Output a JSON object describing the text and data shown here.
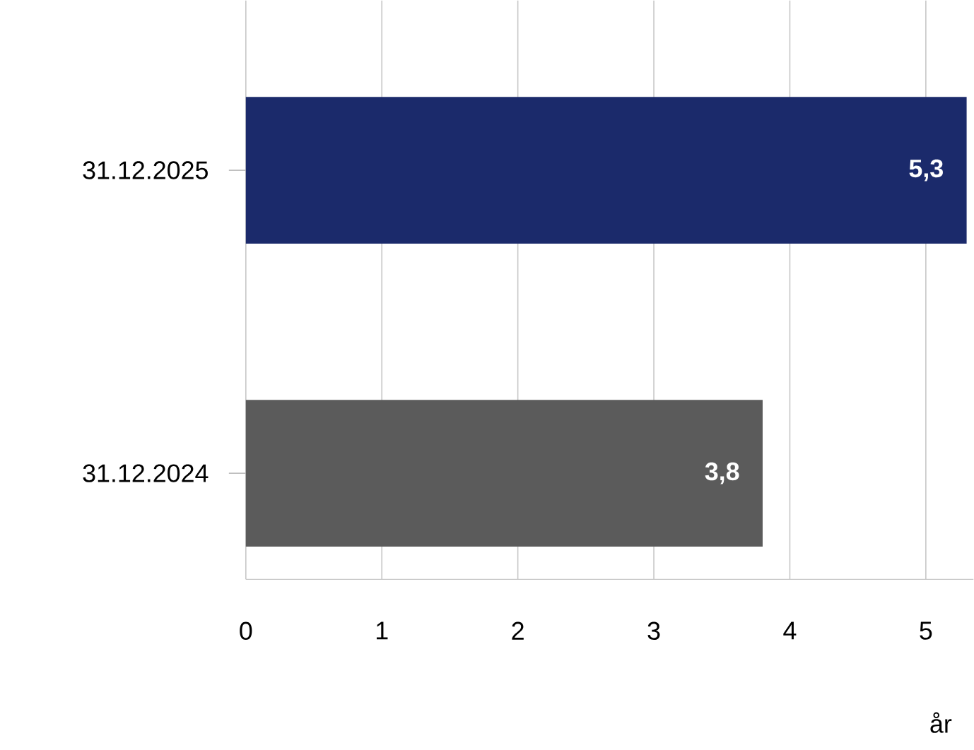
{
  "chart_data": {
    "type": "bar",
    "orientation": "horizontal",
    "categories": [
      "31.12.2025",
      "31.12.2024"
    ],
    "values": [
      5.3,
      3.8
    ],
    "colors": [
      "#1b2a6b",
      "#5b5b5b"
    ],
    "value_labels": [
      "5,3",
      "3,8"
    ],
    "xlim": [
      0,
      5.35
    ],
    "xticks": [
      0,
      1,
      2,
      3,
      4,
      5
    ],
    "xlabel": "år",
    "grid": "x"
  }
}
